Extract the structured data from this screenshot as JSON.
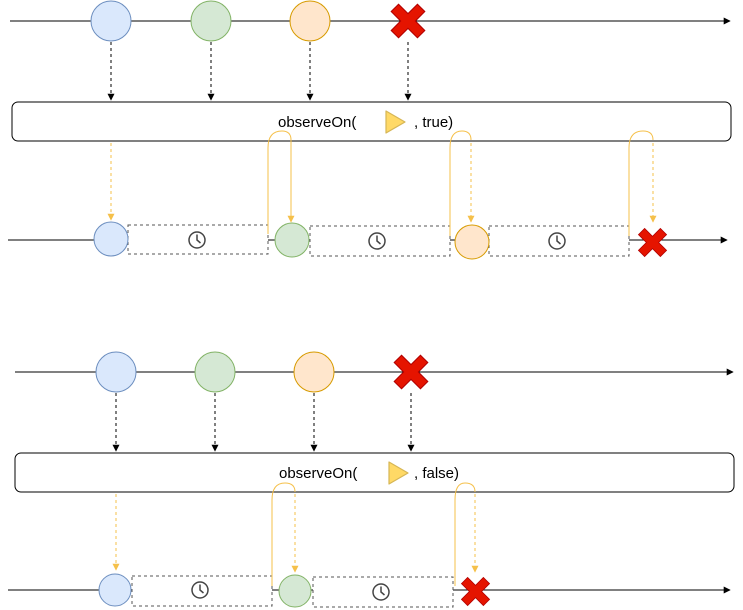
{
  "diagrams": [
    {
      "id": "top",
      "operator": {
        "prefix": "observeOn(",
        "suffix": ", true)",
        "scheduler_icon": "scheduler-triangle-icon"
      },
      "delay_error": true,
      "source_events": [
        "blue",
        "green",
        "orange",
        "error"
      ],
      "output_events": [
        "blue",
        "green",
        "orange",
        "error"
      ],
      "delay_icon": "clock-icon"
    },
    {
      "id": "bottom",
      "operator": {
        "prefix": "observeOn(",
        "suffix": ", false)",
        "scheduler_icon": "scheduler-triangle-icon"
      },
      "delay_error": false,
      "source_events": [
        "blue",
        "green",
        "orange",
        "error"
      ],
      "output_events": [
        "blue",
        "green",
        "error"
      ],
      "delay_icon": "clock-icon"
    }
  ],
  "colors": {
    "blue_fill": "#dae8fc",
    "blue_stroke": "#6c8ebf",
    "green_fill": "#d5e8d4",
    "green_stroke": "#82b366",
    "orange_fill": "#ffe6cc",
    "orange_stroke": "#d79b00",
    "error": "#e51400",
    "scheduler_fill": "#ffd966",
    "scheduler_stroke": "#d6b656",
    "yellow_line": "#f5c04a",
    "timeline": "#000000"
  }
}
